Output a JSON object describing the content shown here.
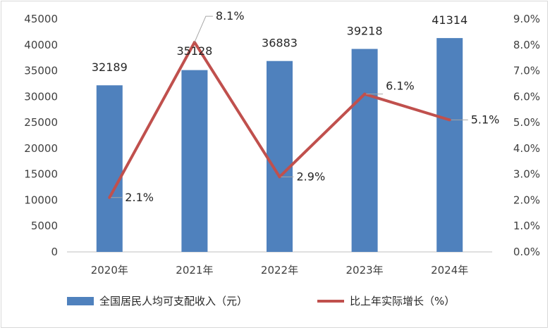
{
  "chart_data": {
    "type": "bar",
    "categories": [
      "2020年",
      "2021年",
      "2022年",
      "2023年",
      "2024年"
    ],
    "series": [
      {
        "name": "全国居民人均可支配收入（元）",
        "type": "bar",
        "axis": "left",
        "color": "#4f81bd",
        "values": [
          32189,
          35128,
          36883,
          39218,
          41314
        ],
        "labels": [
          "32189",
          "35128",
          "36883",
          "39218",
          "41314"
        ]
      },
      {
        "name": "比上年实际增长（%）",
        "type": "line",
        "axis": "right",
        "color": "#c0504d",
        "values": [
          2.1,
          8.1,
          2.9,
          6.1,
          5.1
        ],
        "labels": [
          "2.1%",
          "8.1%",
          "2.9%",
          "6.1%",
          "5.1%"
        ]
      }
    ],
    "y_left": {
      "min": 0,
      "max": 45000,
      "step": 5000,
      "ticks": [
        "0",
        "5000",
        "10000",
        "15000",
        "20000",
        "25000",
        "30000",
        "35000",
        "40000",
        "45000"
      ]
    },
    "y_right": {
      "min": 0,
      "max": 9,
      "step": 1,
      "ticks": [
        "0.0%",
        "1.0%",
        "2.0%",
        "3.0%",
        "4.0%",
        "5.0%",
        "6.0%",
        "7.0%",
        "8.0%",
        "9.0%"
      ]
    },
    "grid": false,
    "legend_position": "bottom"
  }
}
